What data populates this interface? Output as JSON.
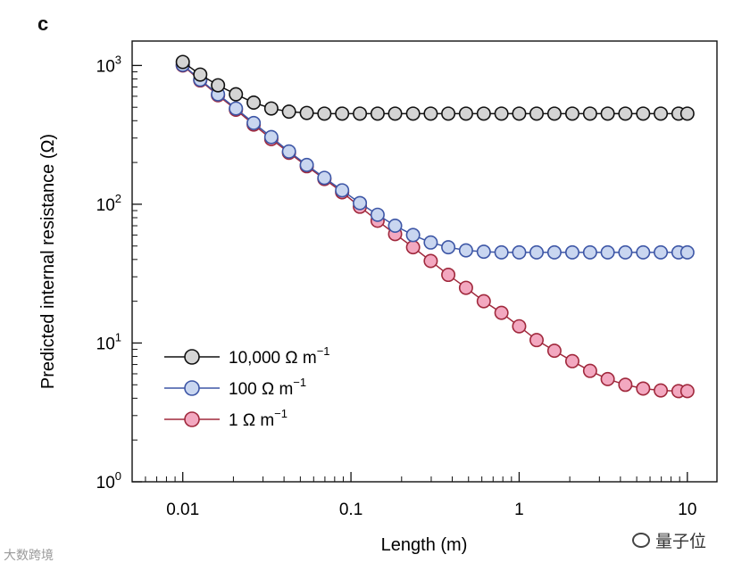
{
  "panel_label": "c",
  "watermark_left": "大数跨境",
  "watermark_right": "量子位",
  "colors": {
    "gray_fill": "#d4d4d4",
    "gray_line": "#111111",
    "blue_fill": "#c9d6f0",
    "blue_line": "#3d56a6",
    "pink_fill": "#f3a8c0",
    "pink_line": "#a0283c"
  },
  "chart_data": {
    "type": "line",
    "xscale": "log",
    "yscale": "log",
    "xlabel": "Length (m)",
    "ylabel": "Predicted internal resistance (Ω)",
    "xlim": [
      0.005,
      15
    ],
    "ylim": [
      1,
      1500
    ],
    "xticks": [
      {
        "value": 0.01,
        "label": "0.01"
      },
      {
        "value": 0.1,
        "label": "0.1"
      },
      {
        "value": 1,
        "label": "1"
      },
      {
        "value": 10,
        "label": "10"
      }
    ],
    "yticks": [
      {
        "value": 1,
        "base": "10",
        "exp": "0"
      },
      {
        "value": 10,
        "base": "10",
        "exp": "1"
      },
      {
        "value": 100,
        "base": "10",
        "exp": "2"
      },
      {
        "value": 1000,
        "base": "10",
        "exp": "3"
      }
    ],
    "legend_position": "lower-left",
    "x": [
      0.01,
      0.0127,
      0.0162,
      0.0207,
      0.0264,
      0.0336,
      0.0428,
      0.0546,
      0.0695,
      0.0886,
      0.113,
      0.144,
      0.183,
      0.234,
      0.298,
      0.379,
      0.483,
      0.616,
      0.785,
      1.0,
      1.27,
      1.62,
      2.07,
      2.64,
      3.36,
      4.28,
      5.46,
      6.95,
      8.86,
      10.0
    ],
    "series": [
      {
        "name": "10,000 Ω m",
        "name_sup": "−1",
        "color_key": "gray",
        "values": [
          1060,
          860,
          720,
          620,
          540,
          490,
          465,
          455,
          450,
          450,
          450,
          450,
          450,
          450,
          450,
          450,
          450,
          450,
          450,
          450,
          450,
          450,
          450,
          450,
          450,
          450,
          450,
          450,
          450,
          450
        ]
      },
      {
        "name": "100 Ω m",
        "name_sup": "−1",
        "color_key": "blue",
        "values": [
          1010,
          790,
          620,
          490,
          385,
          305,
          240,
          192,
          155,
          126,
          102,
          84,
          70,
          60,
          53,
          49,
          46.5,
          45.5,
          45,
          45,
          45,
          45,
          45,
          45,
          45,
          45,
          45,
          45,
          45,
          45
        ]
      },
      {
        "name": "1 Ω m",
        "name_sup": "−1",
        "color_key": "pink",
        "values": [
          1000,
          780,
          610,
          480,
          375,
          295,
          235,
          188,
          152,
          122,
          96,
          76,
          61,
          49,
          39,
          31,
          25,
          20,
          16.5,
          13.2,
          10.5,
          8.8,
          7.4,
          6.3,
          5.5,
          5.0,
          4.7,
          4.55,
          4.5,
          4.5
        ]
      }
    ]
  }
}
